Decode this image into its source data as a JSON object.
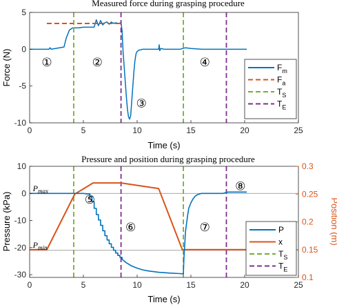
{
  "charts": [
    {
      "title": "Measured force during grasping procedure",
      "xlabel": "Time (s)",
      "ylabel": "Force (N)",
      "xlim": [
        0,
        25
      ],
      "ylim": [
        -10,
        5
      ],
      "xticks": [
        0,
        5,
        10,
        15,
        20,
        25
      ],
      "yticks": [
        -10,
        -5,
        0,
        5
      ],
      "grid": false,
      "legend": {
        "placement": "right",
        "entries": [
          {
            "label": "F",
            "sub": "m",
            "series": "Fm"
          },
          {
            "label": "F",
            "sub": "a",
            "series": "Fa"
          },
          {
            "label": "T",
            "sub": "S",
            "series": "TS"
          },
          {
            "label": "T",
            "sub": "E",
            "series": "TE"
          }
        ]
      },
      "phase_labels": [
        {
          "text": "①",
          "x": 1.6,
          "y": -2.3
        },
        {
          "text": "②",
          "x": 6.3,
          "y": -2.3
        },
        {
          "text": "③",
          "x": 10.4,
          "y": -7.9
        },
        {
          "text": "④",
          "x": 16.3,
          "y": -2.3
        }
      ]
    },
    {
      "title": "Pressure and position during grasping procedure",
      "xlabel": "Time (s)",
      "ylabel_left": "Pressure (kPa)",
      "ylabel_right": "Position (m)",
      "xlim": [
        0,
        25
      ],
      "ylim_left": [
        -31,
        10
      ],
      "ylim_right": [
        0.1,
        0.3
      ],
      "xticks": [
        0,
        5,
        10,
        15,
        20,
        25
      ],
      "yticks_left": [
        -30,
        -20,
        -10,
        0,
        10
      ],
      "yticks_right": [
        0.1,
        0.15,
        0.2,
        0.25,
        0.3
      ],
      "grid": false,
      "annotations": [
        {
          "text": "P",
          "sub": "max",
          "x": 0.3,
          "y": 0.8
        },
        {
          "text": "P",
          "sub": "min",
          "x": 0.3,
          "y": -20.0
        }
      ],
      "legend": {
        "placement": "right",
        "entries": [
          {
            "label": "P",
            "sub": "",
            "series": "P"
          },
          {
            "label": "x",
            "sub": "",
            "series": "x"
          },
          {
            "label": "T",
            "sub": "S",
            "series": "TS"
          },
          {
            "label": "T",
            "sub": "E",
            "series": "TE"
          }
        ]
      },
      "phase_labels": [
        {
          "text": "⑤",
          "x": 5.6,
          "y": -3.8
        },
        {
          "text": "⑥",
          "x": 9.4,
          "y": -13.9
        },
        {
          "text": "⑦",
          "x": 16.3,
          "y": -13.9
        },
        {
          "text": "⑧",
          "x": 19.6,
          "y": 1.2
        }
      ]
    }
  ],
  "chart_data": [
    {
      "type": "line",
      "title": "Measured force during grasping procedure",
      "xlabel": "Time (s)",
      "ylabel": "Force (N)",
      "xlim": [
        0,
        25
      ],
      "ylim": [
        -10,
        5
      ],
      "series": [
        {
          "name": "Fm",
          "color": "#0072BD",
          "style": "solid",
          "x": [
            0,
            1,
            1.8,
            1.9,
            2.0,
            3.2,
            3.4,
            3.7,
            4.0,
            4.5,
            5.0,
            5.5,
            6.0,
            6.2,
            6.4,
            6.6,
            6.8,
            7.0,
            7.2,
            7.4,
            7.6,
            7.8,
            8.0,
            8.3,
            8.5,
            8.6,
            8.7,
            8.8,
            8.9,
            9.0,
            9.1,
            9.2,
            9.3,
            9.4,
            9.5,
            9.6,
            9.7,
            9.8,
            9.9,
            10.0,
            10.1,
            10.2,
            10.3,
            10.5,
            11.0,
            12.0,
            12.05,
            12.1,
            12.2,
            12.5,
            13.0,
            14.0,
            14.5,
            15.0,
            16.0,
            17.0,
            18.0,
            19.0,
            20.2
          ],
          "y": [
            0,
            0,
            0,
            0.2,
            0,
            0.3,
            1.5,
            2.6,
            2.9,
            2.9,
            3.0,
            3.0,
            3.0,
            4.0,
            3.2,
            3.9,
            3.3,
            3.6,
            3.7,
            3.4,
            3.7,
            3.5,
            3.6,
            3.5,
            3.6,
            2.5,
            -0.5,
            -2.5,
            -4.5,
            -6.5,
            -8.2,
            -9.2,
            -9.5,
            -9.0,
            -7.0,
            -5.0,
            -3.0,
            -1.5,
            -0.6,
            -0.3,
            -0.2,
            -0.1,
            -0.1,
            0,
            0,
            0,
            0.6,
            -0.2,
            0.1,
            0,
            0,
            0,
            0.2,
            0.1,
            0,
            0,
            0,
            0,
            0
          ]
        },
        {
          "name": "Fa",
          "color": "#D95319",
          "style": "dashed",
          "x": [
            1.6,
            8.5
          ],
          "y": [
            3.5,
            3.5
          ]
        },
        {
          "name": "TS",
          "color": "#77AC30",
          "style": "dashed",
          "vertical_at": [
            4.1,
            14.3
          ]
        },
        {
          "name": "TE",
          "color": "#7E2F8E",
          "style": "dashed",
          "vertical_at": [
            8.5,
            18.3
          ]
        }
      ]
    },
    {
      "type": "line",
      "title": "Pressure and position during grasping procedure",
      "xlabel": "Time (s)",
      "ylabel": "Pressure (kPa)",
      "ylabel_right": "Position (m)",
      "xlim": [
        0,
        25
      ],
      "ylim": [
        -31,
        10
      ],
      "ylim_right": [
        0.1,
        0.3
      ],
      "series": [
        {
          "name": "P",
          "color": "#0072BD",
          "style": "solid",
          "axis": "left",
          "x": [
            0,
            4.2,
            4.6,
            5.0,
            5.3,
            5.6,
            5.6,
            5.8,
            5.8,
            6.0,
            6.0,
            6.2,
            6.2,
            6.4,
            6.4,
            6.6,
            6.6,
            6.8,
            6.8,
            7.0,
            7.0,
            7.2,
            7.2,
            7.4,
            7.4,
            7.6,
            7.6,
            7.8,
            7.8,
            8.0,
            8.0,
            8.2,
            8.2,
            8.4,
            8.4,
            8.6,
            8.6,
            8.8,
            9.0,
            9.5,
            10.0,
            10.5,
            11.0,
            12.0,
            13.0,
            14.0,
            14.3,
            14.35,
            14.5,
            14.6,
            14.7,
            14.8,
            15.0,
            15.2,
            15.4,
            15.6,
            15.8,
            16.0,
            17.0,
            18.0,
            18.3,
            18.5,
            20.2
          ],
          "y": [
            0,
            0,
            0,
            0,
            -0.2,
            -0.2,
            -1.2,
            -1.2,
            -3.0,
            -3.0,
            -5.5,
            -5.5,
            -7.8,
            -7.8,
            -9.8,
            -9.8,
            -11.8,
            -11.8,
            -13.8,
            -13.8,
            -15.6,
            -15.6,
            -17.2,
            -17.2,
            -18.6,
            -18.6,
            -19.9,
            -19.9,
            -21.0,
            -21.0,
            -22.0,
            -22.0,
            -22.9,
            -22.9,
            -23.6,
            -23.6,
            -24.3,
            -25.0,
            -25.6,
            -26.8,
            -27.6,
            -28.2,
            -28.6,
            -29.1,
            -29.4,
            -29.6,
            -29.7,
            -24.0,
            -14.0,
            -11.0,
            -8.0,
            -5.5,
            -3.5,
            -2.0,
            -1.0,
            -0.5,
            -0.2,
            0,
            0,
            0,
            0.4,
            0.5,
            0.5
          ]
        },
        {
          "name": "x",
          "color": "#D95319",
          "style": "solid",
          "axis": "right",
          "x": [
            0,
            1.6,
            4.2,
            5.9,
            8.5,
            12.0,
            14.2,
            14.3,
            20.2
          ],
          "y": [
            0.15,
            0.15,
            0.25,
            0.27,
            0.27,
            0.26,
            0.15,
            0.15,
            0.15
          ]
        },
        {
          "name": "TS",
          "color": "#77AC30",
          "style": "dashed",
          "vertical_at": [
            4.1,
            14.3
          ]
        },
        {
          "name": "TE",
          "color": "#7E2F8E",
          "style": "dashed",
          "vertical_at": [
            8.5,
            18.3
          ]
        }
      ],
      "reference_lines": [
        {
          "axis": "left",
          "y": 0,
          "color": "#888888"
        },
        {
          "axis": "left",
          "y": -21,
          "color": "#888888"
        }
      ]
    }
  ]
}
